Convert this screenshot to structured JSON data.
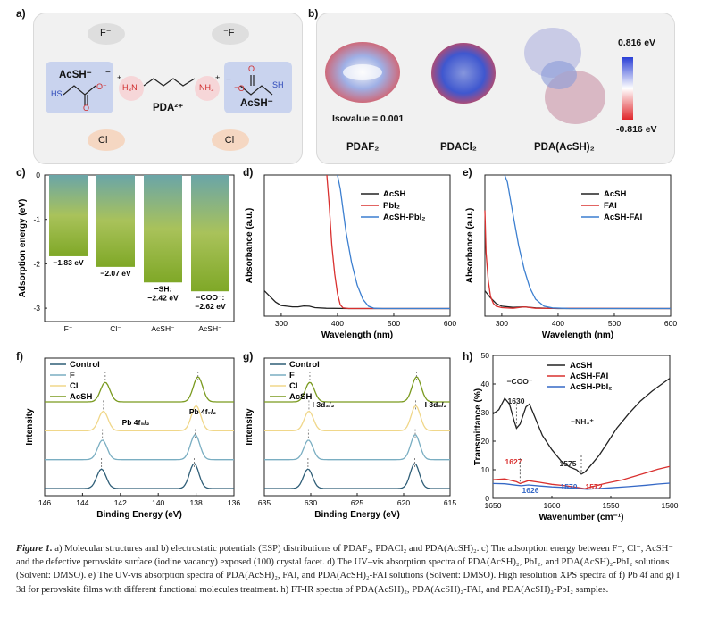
{
  "panel_labels": {
    "a": "a)",
    "b": "b)",
    "c": "c)",
    "d": "d)",
    "e": "e)",
    "f": "f)",
    "g": "g)",
    "h": "h)"
  },
  "panel_a": {
    "ions": [
      "F⁻",
      "⁻F",
      "Cl⁻",
      "⁻Cl"
    ],
    "left_anion": {
      "name": "AcSH⁻",
      "charge": "−",
      "atoms": {
        "HS": "HS",
        "O_top": "O",
        "O_charge": "O⁻"
      }
    },
    "right_anion": {
      "name": "AcSH⁻",
      "charge": "−",
      "atoms": {
        "SH": "SH",
        "O_top": "O",
        "O_charge": "⁻O"
      }
    },
    "cation": {
      "name": "PDA²⁺",
      "left_group": "H₃N",
      "right_group": "NH₃",
      "plus": "+"
    }
  },
  "panel_b": {
    "isovalue": "Isovalue = 0.001",
    "molecules": [
      "PDAF₂",
      "PDACl₂",
      "PDA(AcSH)₂"
    ],
    "colorbar": {
      "max": "0.816 eV",
      "min": "-0.816 eV",
      "max_color": "#2a3fd6",
      "min_color": "#e0262b"
    }
  },
  "caption": {
    "label": "Figure 1.",
    "text": "a) Molecular structures and b) electrostatic potentials (ESP) distributions of PDAF₂, PDACl₂ and PDA(AcSH)₂. c) The adsorption energy between F⁻, Cl⁻, AcSH⁻ and the defective perovskite surface (iodine vacancy) exposed (100) crystal facet. d) The UV–vis absorption spectra of PDA(AcSH)₂, PbI₂, and PDA(AcSH)₂-PbI₂ solutions (Solvent: DMSO). e) The UV-vis absorption spectra of PDA(AcSH)₂, FAI, and PDA(AcSH)₂-FAI solutions (Solvent: DMSO). High resolution XPS spectra of f) Pb 4f and g) I 3d for perovskite films with different functional molecules treatment. h) FT-IR spectra of PDA(AcSH)₂, PDA(AcSH)₂-FAI, and PDA(AcSH)₂-PbI₂ samples."
  },
  "chart_data": [
    {
      "id": "c",
      "type": "bar",
      "categories": [
        "F⁻",
        "Cl⁻",
        "AcSH⁻",
        "AcSH⁻"
      ],
      "values": [
        -1.83,
        -2.07,
        -2.42,
        -2.62
      ],
      "data_labels": [
        "−1.83 eV",
        "−2.07 eV",
        "−SH:\n−2.42 eV",
        "−COO⁻:\n−2.62 eV"
      ],
      "ylabel": "Adsorption energy (eV)",
      "ylim": [
        -3.3,
        0
      ],
      "yticks": [
        "0",
        "-1",
        "-2",
        "-3"
      ],
      "bar_gradient": [
        "#6aa5a8",
        "#a9c25a",
        "#7fa827"
      ]
    },
    {
      "id": "d",
      "type": "line",
      "xlabel": "Wavelength (nm)",
      "ylabel": "Absorbance (a.u.)",
      "xlim": [
        270,
        600
      ],
      "ylim": [
        0,
        1
      ],
      "xticks": [
        "300",
        "400",
        "500",
        "600"
      ],
      "series": [
        {
          "name": "AcSH",
          "color": "#222222",
          "points": [
            [
              270,
              0.18
            ],
            [
              280,
              0.14
            ],
            [
              290,
              0.1
            ],
            [
              300,
              0.075
            ],
            [
              310,
              0.07
            ],
            [
              320,
              0.066
            ],
            [
              330,
              0.066
            ],
            [
              340,
              0.072
            ],
            [
              350,
              0.07
            ],
            [
              360,
              0.06
            ],
            [
              380,
              0.056
            ],
            [
              420,
              0.054
            ],
            [
              600,
              0.054
            ]
          ]
        },
        {
          "name": "PbI₂",
          "color": "#d9302f",
          "points": [
            [
              381,
              1.05
            ],
            [
              385,
              0.8
            ],
            [
              390,
              0.5
            ],
            [
              395,
              0.3
            ],
            [
              400,
              0.16
            ],
            [
              405,
              0.08
            ],
            [
              410,
              0.058
            ],
            [
              420,
              0.054
            ],
            [
              600,
              0.054
            ]
          ]
        },
        {
          "name": "AcSH-PbI₂",
          "color": "#3c7fd0",
          "points": [
            [
              400,
              1.05
            ],
            [
              405,
              0.9
            ],
            [
              415,
              0.6
            ],
            [
              425,
              0.38
            ],
            [
              435,
              0.22
            ],
            [
              445,
              0.12
            ],
            [
              455,
              0.07
            ],
            [
              465,
              0.056
            ],
            [
              480,
              0.054
            ],
            [
              600,
              0.054
            ]
          ]
        }
      ]
    },
    {
      "id": "e",
      "type": "line",
      "xlabel": "Wavelength (nm)",
      "ylabel": "Absorbance (a.u.)",
      "xlim": [
        270,
        600
      ],
      "ylim": [
        0,
        1
      ],
      "xticks": [
        "300",
        "400",
        "500",
        "600"
      ],
      "series": [
        {
          "name": "AcSH",
          "color": "#222222",
          "points": [
            [
              270,
              0.18
            ],
            [
              280,
              0.13
            ],
            [
              290,
              0.09
            ],
            [
              300,
              0.07
            ],
            [
              320,
              0.062
            ],
            [
              340,
              0.066
            ],
            [
              360,
              0.058
            ],
            [
              400,
              0.054
            ],
            [
              600,
              0.054
            ]
          ]
        },
        {
          "name": "FAI",
          "color": "#d9302f",
          "points": [
            [
              268,
              0.75
            ],
            [
              272,
              0.45
            ],
            [
              276,
              0.25
            ],
            [
              280,
              0.14
            ],
            [
              285,
              0.09
            ],
            [
              290,
              0.07
            ],
            [
              300,
              0.06
            ],
            [
              320,
              0.056
            ],
            [
              340,
              0.066
            ],
            [
              360,
              0.056
            ],
            [
              600,
              0.054
            ]
          ]
        },
        {
          "name": "AcSH-FAI",
          "color": "#3c7fd0",
          "points": [
            [
              305,
              1.05
            ],
            [
              310,
              0.95
            ],
            [
              320,
              0.72
            ],
            [
              330,
              0.5
            ],
            [
              340,
              0.33
            ],
            [
              350,
              0.2
            ],
            [
              360,
              0.12
            ],
            [
              375,
              0.07
            ],
            [
              390,
              0.058
            ],
            [
              420,
              0.054
            ],
            [
              600,
              0.054
            ]
          ]
        }
      ]
    },
    {
      "id": "f",
      "type": "line",
      "xlabel": "Binding Energy (eV)",
      "ylabel": "Intensity",
      "xlim": [
        146,
        136
      ],
      "xticks": [
        "146",
        "144",
        "142",
        "140",
        "138",
        "136"
      ],
      "annotations": [
        "Pb 4f₅/₂",
        "Pb 4f₇/₂"
      ],
      "peaks": [
        142.9,
        138.0
      ],
      "series": [
        {
          "name": "Control",
          "color": "#2f5e77",
          "offset": 0.0,
          "shift": 0.1
        },
        {
          "name": "F",
          "color": "#7aaec2",
          "offset": 0.2,
          "shift": 0.05
        },
        {
          "name": "Cl",
          "color": "#f0d78a",
          "offset": 0.4,
          "shift": 0.0
        },
        {
          "name": "AcSH",
          "color": "#7a9a1f",
          "offset": 0.6,
          "shift": -0.1
        }
      ]
    },
    {
      "id": "g",
      "type": "line",
      "xlabel": "Binding Energy (eV)",
      "ylabel": "Intensity",
      "xlim": [
        635,
        615
      ],
      "xticks": [
        "635",
        "630",
        "625",
        "620",
        "615"
      ],
      "annotations": [
        "I 3d₃/₂",
        "I 3d₅/₂"
      ],
      "peaks": [
        630.2,
        618.7
      ],
      "series": [
        {
          "name": "Control",
          "color": "#2f5e77",
          "offset": 0.0,
          "shift": 0.1
        },
        {
          "name": "F",
          "color": "#7aaec2",
          "offset": 0.2,
          "shift": 0.05
        },
        {
          "name": "Cl",
          "color": "#f0d78a",
          "offset": 0.4,
          "shift": 0.0
        },
        {
          "name": "AcSH",
          "color": "#7a9a1f",
          "offset": 0.6,
          "shift": -0.1
        }
      ]
    },
    {
      "id": "h",
      "type": "line",
      "xlabel": "Wavenumber (cm⁻¹)",
      "ylabel": "Transmittance (%)",
      "xlim": [
        1650,
        1500
      ],
      "ylim": [
        0,
        50
      ],
      "xticks": [
        "1650",
        "1600",
        "1550",
        "1500"
      ],
      "yticks": [
        "0",
        "10",
        "20",
        "30",
        "40",
        "50"
      ],
      "annotations": [
        "−COO⁻",
        "1630",
        "−NH₃⁺",
        "1575",
        "1627",
        "1626",
        "1570",
        "1572"
      ],
      "series": [
        {
          "name": "AcSH",
          "color": "#222222",
          "points": [
            [
              1650,
              29.5
            ],
            [
              1645,
              31
            ],
            [
              1640,
              35
            ],
            [
              1636,
              33
            ],
            [
              1632,
              27
            ],
            [
              1630,
              24.5
            ],
            [
              1627,
              26
            ],
            [
              1622,
              32
            ],
            [
              1619,
              33
            ],
            [
              1615,
              29
            ],
            [
              1608,
              22
            ],
            [
              1600,
              17
            ],
            [
              1592,
              13
            ],
            [
              1585,
              11
            ],
            [
              1579,
              10
            ],
            [
              1575,
              8.5
            ],
            [
              1572,
              9.2
            ],
            [
              1566,
              12
            ],
            [
              1560,
              15
            ],
            [
              1552,
              20
            ],
            [
              1545,
              24.5
            ],
            [
              1535,
              29.5
            ],
            [
              1525,
              34
            ],
            [
              1515,
              37.5
            ],
            [
              1505,
              40.5
            ],
            [
              1500,
              42
            ]
          ]
        },
        {
          "name": "AcSH-FAI",
          "color": "#d9302f",
          "points": [
            [
              1650,
              6.5
            ],
            [
              1640,
              6.8
            ],
            [
              1630,
              5.8
            ],
            [
              1627,
              5.2
            ],
            [
              1620,
              6.2
            ],
            [
              1610,
              5.6
            ],
            [
              1600,
              4.9
            ],
            [
              1590,
              4.5
            ],
            [
              1580,
              3.9
            ],
            [
              1572,
              3.4
            ],
            [
              1565,
              4.2
            ],
            [
              1555,
              5.2
            ],
            [
              1540,
              6.5
            ],
            [
              1525,
              8.3
            ],
            [
              1510,
              10.2
            ],
            [
              1500,
              11.2
            ]
          ]
        },
        {
          "name": "AcSH-PbI₂",
          "color": "#3568c6",
          "points": [
            [
              1650,
              5.2
            ],
            [
              1640,
              5.1
            ],
            [
              1630,
              4.6
            ],
            [
              1626,
              4.4
            ],
            [
              1620,
              4.7
            ],
            [
              1610,
              4.3
            ],
            [
              1600,
              4.0
            ],
            [
              1590,
              3.8
            ],
            [
              1580,
              3.5
            ],
            [
              1570,
              3.2
            ],
            [
              1562,
              3.4
            ],
            [
              1550,
              3.7
            ],
            [
              1535,
              4.1
            ],
            [
              1520,
              4.6
            ],
            [
              1510,
              5.0
            ],
            [
              1500,
              5.3
            ]
          ]
        }
      ]
    }
  ]
}
